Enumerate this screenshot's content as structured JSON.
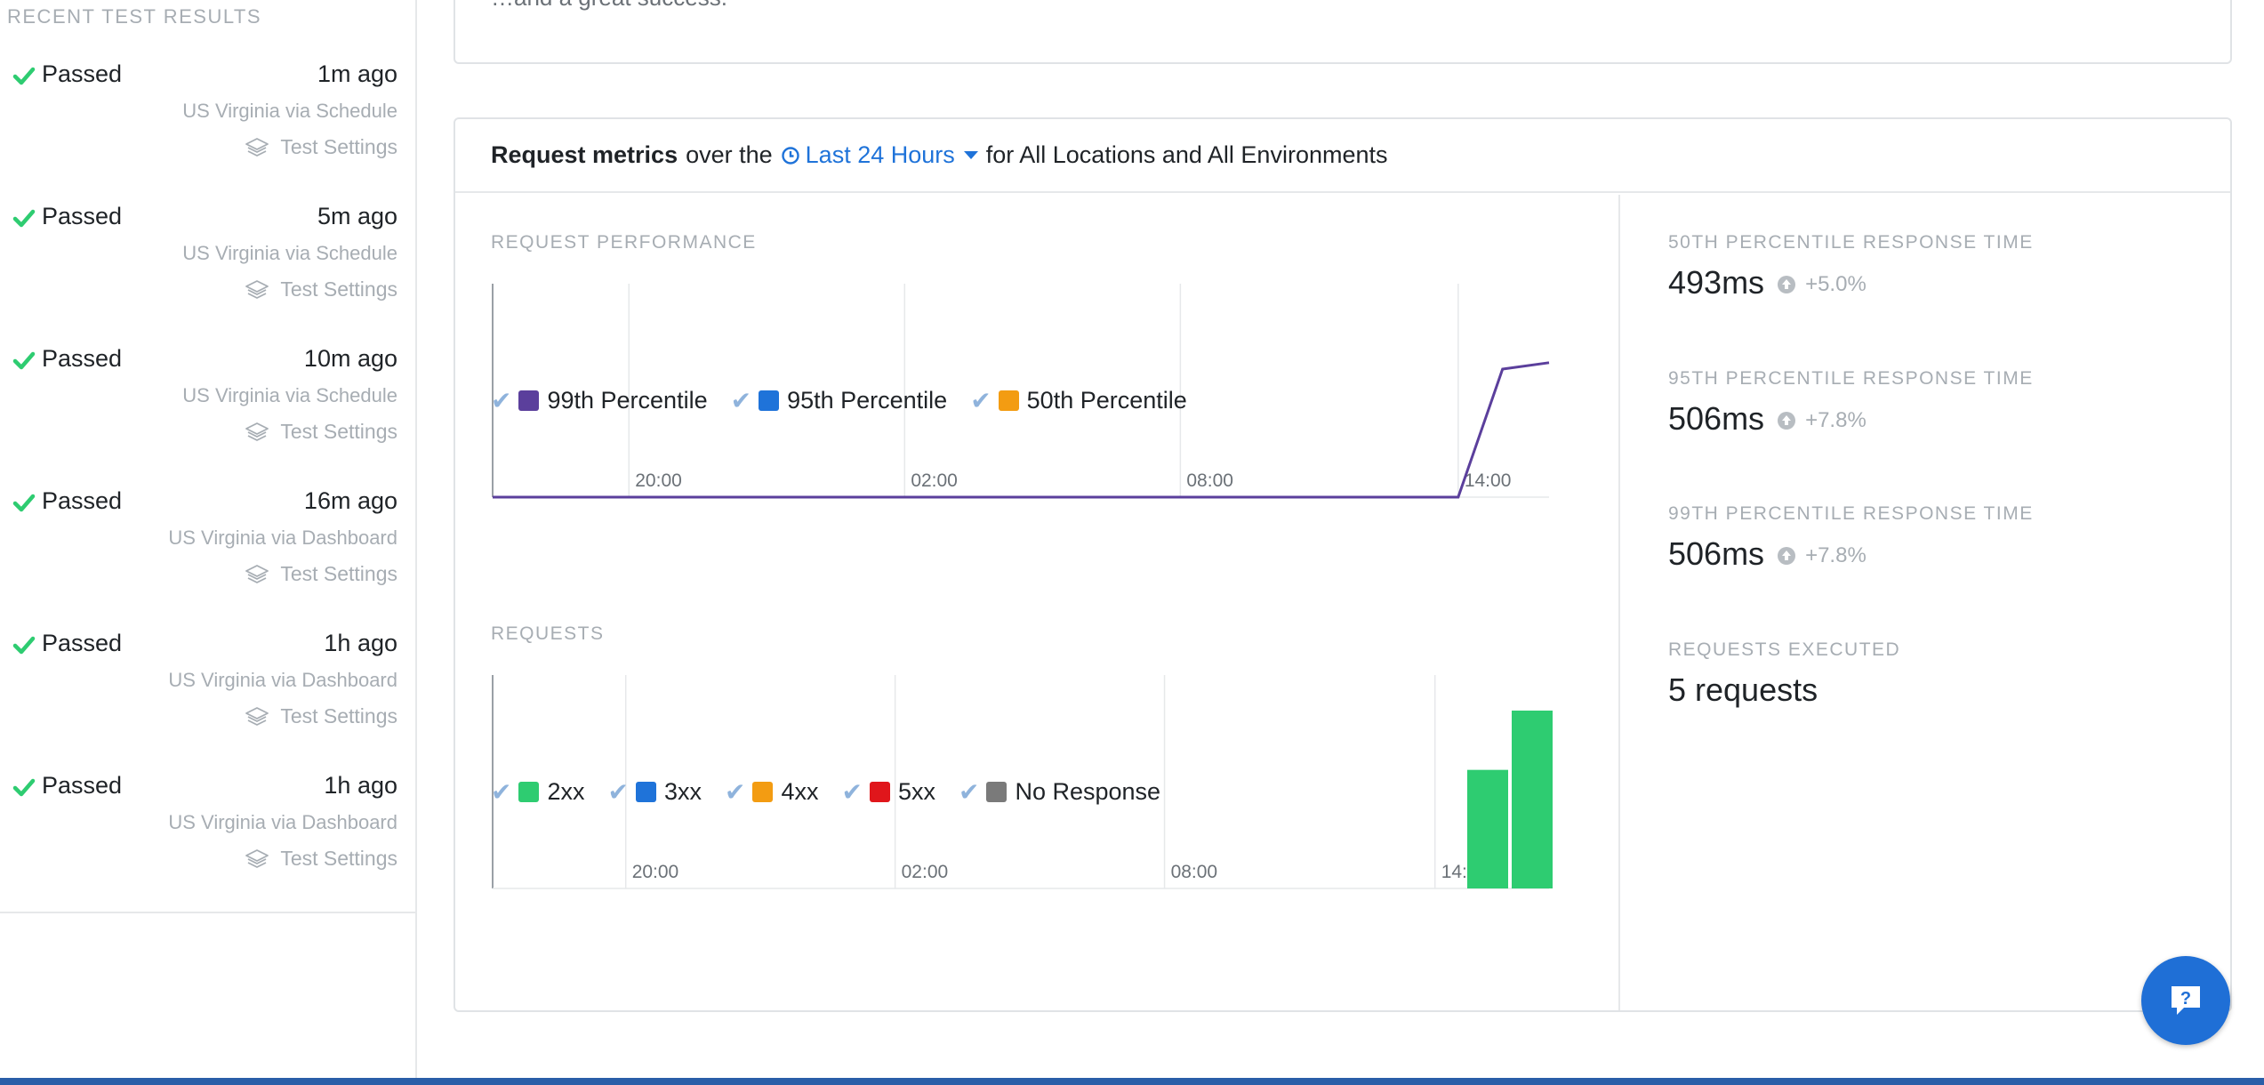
{
  "sidebar": {
    "title": "RECENT TEST RESULTS",
    "results": [
      {
        "status": "Passed",
        "time": "1m ago",
        "location": "US Virginia via Schedule",
        "settings_label": "Test Settings"
      },
      {
        "status": "Passed",
        "time": "5m ago",
        "location": "US Virginia via Schedule",
        "settings_label": "Test Settings"
      },
      {
        "status": "Passed",
        "time": "10m ago",
        "location": "US Virginia via Schedule",
        "settings_label": "Test Settings"
      },
      {
        "status": "Passed",
        "time": "16m ago",
        "location": "US Virginia via Dashboard",
        "settings_label": "Test Settings"
      },
      {
        "status": "Passed",
        "time": "1h ago",
        "location": "US Virginia via Dashboard",
        "settings_label": "Test Settings"
      },
      {
        "status": "Passed",
        "time": "1h ago",
        "location": "US Virginia via Dashboard",
        "settings_label": "Test Settings"
      }
    ]
  },
  "top_card": {
    "text": "…and a great success."
  },
  "metrics": {
    "header_strong": "Request metrics",
    "header_pre": "over the",
    "range_label": "Last 24 Hours",
    "header_post": "for All Locations and All Environments",
    "performance_label": "REQUEST PERFORMANCE",
    "requests_label": "REQUESTS",
    "performance_legend": [
      {
        "label": "99th Percentile",
        "color": "#5b3f9c"
      },
      {
        "label": "95th Percentile",
        "color": "#1f73d9"
      },
      {
        "label": "50th Percentile",
        "color": "#f39c12"
      }
    ],
    "requests_legend": [
      {
        "label": "2xx",
        "color": "#2ecc71"
      },
      {
        "label": "3xx",
        "color": "#1f73d9"
      },
      {
        "label": "4xx",
        "color": "#f39c12"
      },
      {
        "label": "5xx",
        "color": "#e0161b"
      },
      {
        "label": "No Response",
        "color": "#7a7a7a"
      }
    ],
    "stats": [
      {
        "label": "50TH PERCENTILE RESPONSE TIME",
        "value": "493ms",
        "change": "+5.0%"
      },
      {
        "label": "95TH PERCENTILE RESPONSE TIME",
        "value": "506ms",
        "change": "+7.8%"
      },
      {
        "label": "99TH PERCENTILE RESPONSE TIME",
        "value": "506ms",
        "change": "+7.8%"
      },
      {
        "label": "REQUESTS EXECUTED",
        "value": "5 requests",
        "change": ""
      }
    ]
  },
  "chart_data": [
    {
      "type": "line",
      "x_ticks": [
        "20:00",
        "02:00",
        "08:00",
        "14:00"
      ],
      "series": [
        {
          "name": "99th Percentile",
          "color": "#5b3f9c",
          "points": [
            [
              0,
              0
            ],
            [
              0.914,
              0
            ],
            [
              0.956,
              0.6
            ],
            [
              1.0,
              0.63
            ]
          ]
        }
      ],
      "ylim": [
        0,
        1
      ]
    },
    {
      "type": "bar",
      "x_ticks": [
        "20:00",
        "02:00",
        "08:00",
        "14:00"
      ],
      "series": [
        {
          "name": "2xx",
          "color": "#2ecc71",
          "values": [
            2,
            3
          ]
        }
      ],
      "ylim": [
        0,
        3.6
      ]
    }
  ],
  "colors": {
    "check": "#2ecc71",
    "accent": "#1f73d9",
    "help_button": "#1f6fd6"
  }
}
